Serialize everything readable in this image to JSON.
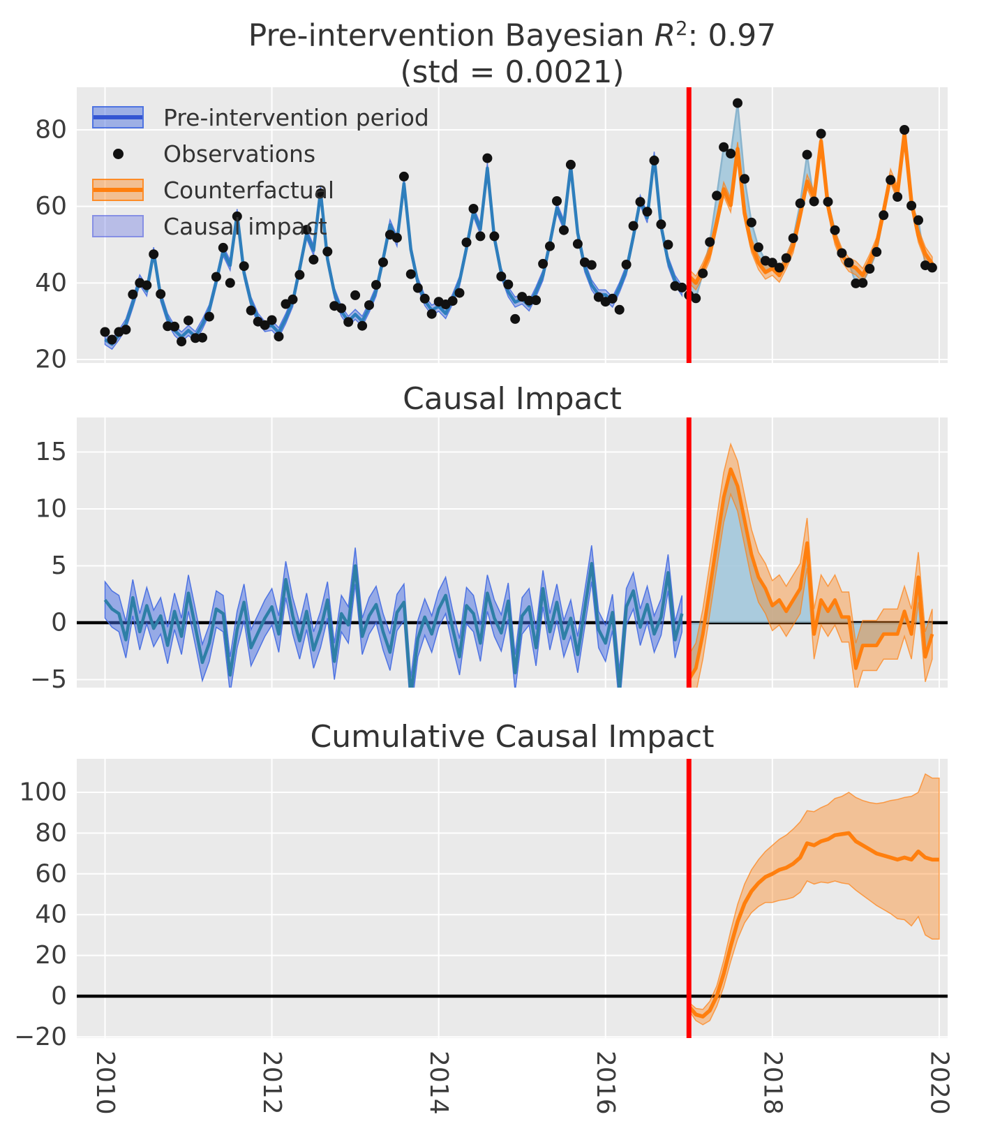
{
  "titles": {
    "top": {
      "prefix": "Pre-intervention Bayesian ",
      "r_symbol": "R",
      "exponent": "2",
      "suffix": ": 0.97",
      "subtitle": "(std = 0.0021)"
    },
    "middle": "Causal Impact",
    "bottom": "Cumulative Causal Impact"
  },
  "legend": {
    "items": [
      {
        "label": "Pre-intervention period",
        "swatch": "band-blue"
      },
      {
        "label": "Observations",
        "swatch": "dot"
      },
      {
        "label": "Counterfactual",
        "swatch": "band-orange"
      },
      {
        "label": "Causal impact",
        "swatch": "patch-lavender"
      }
    ]
  },
  "colors": {
    "panel_bg": "#eaeaea",
    "grid": "#ffffff",
    "text": "#3c3c3c",
    "blue_line": "#2e7ebc",
    "mid_blue_line": "#2e7fa6",
    "blue_band": "#4169e1",
    "legend_blue_line": "#3455d2",
    "orange_line": "#ff7f0e",
    "orange_band": "#ff7f0e",
    "impact_fill": "#9fc6da",
    "obs_thin_line": "#8ab4cd",
    "lavender_patch": "#5c69e1",
    "intervention_red": "#ff0000",
    "zero_black": "#000000",
    "dot_black": "#111111"
  },
  "chart_data": [
    {
      "type": "line",
      "panel": "observations-vs-counterfactual",
      "title": "Pre-intervention Bayesian R²: 0.97 (std = 0.0021)",
      "x_unit": "decimal years, monthly step 1/12",
      "x_start": 2010.0,
      "n_points": 120,
      "xticks": [
        2010,
        2012,
        2014,
        2016,
        2018,
        2020
      ],
      "yticks": [
        20,
        40,
        60,
        80
      ],
      "ylim": [
        19,
        91
      ],
      "intervention_x": 2017.0,
      "legend": [
        "Pre-intervention period",
        "Observations",
        "Counterfactual",
        "Causal impact"
      ],
      "series": [
        {
          "name": "model-fit-pre-intervention",
          "x_start": 2010.0,
          "band_halfwidth": 1.3,
          "values": [
            25.2,
            24.0,
            26.4,
            29.3,
            34.8,
            40.8,
            37.9,
            48.0,
            36.5,
            30.7,
            27.6,
            25.9,
            27.6,
            26.0,
            29.2,
            33.0,
            40.4,
            48.4,
            44.6,
            58.0,
            42.6,
            35.0,
            30.8,
            28.6,
            28.9,
            27.0,
            30.7,
            35.1,
            43.7,
            52.9,
            48.5,
            64.0,
            46.2,
            37.4,
            32.6,
            30.0,
            31.8,
            30.0,
            33.6,
            37.9,
            46.2,
            55.2,
            50.9,
            66.0,
            48.7,
            40.1,
            35.4,
            32.9,
            33.9,
            32.0,
            35.8,
            40.4,
            49.1,
            58.6,
            54.0,
            70.0,
            51.8,
            42.6,
            37.7,
            35.0,
            35.8,
            34.0,
            37.7,
            42.0,
            50.4,
            59.6,
            55.2,
            70.5,
            53.0,
            44.2,
            39.5,
            36.9,
            36.9,
            35.0,
            38.8,
            43.4,
            52.1,
            61.6,
            57.0,
            73.0,
            54.8,
            45.6,
            40.7,
            38.0
          ]
        },
        {
          "name": "observations",
          "x_start": 2010.0,
          "values": [
            27.2,
            25.2,
            27.2,
            27.8,
            37.0,
            40.0,
            39.4,
            47.5,
            37.1,
            28.7,
            28.6,
            24.7,
            30.2,
            25.6,
            25.7,
            31.2,
            41.6,
            49.2,
            40.0,
            57.4,
            44.4,
            32.8,
            29.9,
            29.0,
            30.3,
            26.0,
            34.5,
            35.7,
            42.1,
            53.9,
            46.1,
            63.4,
            48.2,
            34.0,
            33.4,
            29.8,
            36.8,
            28.8,
            34.2,
            39.5,
            45.4,
            52.6,
            51.8,
            67.8,
            42.3,
            38.7,
            35.9,
            31.9,
            35.1,
            34.4,
            35.3,
            37.4,
            50.6,
            59.4,
            52.2,
            72.6,
            52.2,
            41.7,
            39.6,
            30.6,
            36.4,
            35.4,
            35.5,
            45.0,
            49.6,
            61.4,
            53.8,
            70.9,
            50.2,
            45.4,
            44.7,
            36.3,
            35.1,
            35.9,
            33.0,
            44.8,
            54.9,
            61.2,
            58.6,
            72.0,
            55.3,
            50.0,
            39.2,
            38.8,
            36.8,
            36.0,
            42.5,
            50.7,
            62.8,
            75.5,
            73.8,
            87.0,
            67.2,
            55.8,
            49.3,
            45.8,
            45.3,
            44.0,
            46.5,
            51.7,
            60.8,
            73.5,
            61.3,
            79.0,
            61.2,
            53.8,
            47.8,
            45.3,
            39.9,
            40.0,
            43.7,
            48.1,
            57.7,
            66.9,
            62.5,
            80.0,
            60.2,
            56.4,
            44.6,
            44.0
          ]
        },
        {
          "name": "counterfactual",
          "x_start": 2017.0,
          "band_halfwidth": 1.8,
          "values": [
            41.8,
            40.0,
            43.5,
            47.7,
            55.8,
            64.5,
            60.3,
            75.0,
            58.2,
            49.8,
            45.3,
            42.8,
            43.8,
            42.0,
            45.5,
            49.7,
            57.8,
            66.5,
            62.3,
            77.0,
            60.2,
            51.8,
            47.3,
            44.8,
            43.9,
            42.0,
            45.7,
            50.1,
            58.7,
            67.9,
            63.5,
            79.0,
            61.2,
            52.4,
            47.6,
            45.0
          ]
        }
      ]
    },
    {
      "type": "line",
      "panel": "pointwise-causal-impact",
      "title": "Causal Impact",
      "xticks": [
        2010,
        2012,
        2014,
        2016,
        2018,
        2020
      ],
      "yticks": [
        -5,
        0,
        5,
        10,
        15
      ],
      "ylim": [
        -5.7,
        18
      ],
      "zero_line": true,
      "intervention_x": 2017.0,
      "series": [
        {
          "name": "impact-pre-intervention",
          "x_start": 2010.0,
          "band_halfwidth": 1.6,
          "values": [
            2.0,
            1.2,
            0.8,
            -1.5,
            2.2,
            -0.8,
            1.5,
            -0.5,
            0.6,
            -2.0,
            1.0,
            -1.2,
            2.6,
            -0.4,
            -3.5,
            -1.8,
            1.2,
            0.8,
            -4.6,
            -0.6,
            1.8,
            -2.2,
            -0.9,
            0.4,
            1.4,
            -1.0,
            3.8,
            0.6,
            -1.6,
            1.0,
            -2.4,
            -0.6,
            2.0,
            -3.4,
            0.8,
            -0.2,
            5.0,
            -1.2,
            0.6,
            1.6,
            -0.8,
            -2.6,
            0.9,
            1.8,
            -6.4,
            -1.4,
            0.5,
            -1.0,
            1.2,
            2.4,
            -0.5,
            -3.0,
            1.5,
            0.8,
            -1.8,
            2.6,
            0.4,
            -0.9,
            1.9,
            -4.4,
            0.6,
            1.4,
            -2.2,
            3.0,
            -0.8,
            1.8,
            -1.4,
            0.4,
            -2.8,
            1.2,
            5.2,
            -0.6,
            -1.8,
            0.9,
            -5.8,
            1.4,
            2.8,
            -0.4,
            1.6,
            -1.0,
            0.5,
            4.4,
            -1.5,
            0.8
          ]
        },
        {
          "name": "impact-post-intervention",
          "x_start": 2017.0,
          "band_halfwidth": 2.2,
          "values": [
            -5.0,
            -4.0,
            -1.0,
            3.0,
            7.0,
            11.0,
            13.5,
            12.0,
            9.0,
            6.0,
            4.0,
            3.0,
            1.5,
            2.0,
            1.0,
            2.0,
            3.0,
            7.0,
            -1.0,
            2.0,
            1.0,
            2.0,
            0.5,
            0.5,
            -4.0,
            -2.0,
            -2.0,
            -2.0,
            -1.0,
            -1.0,
            -1.0,
            1.0,
            -1.0,
            4.0,
            -3.0,
            -1.0
          ]
        }
      ]
    },
    {
      "type": "line",
      "panel": "cumulative-causal-impact",
      "title": "Cumulative Causal Impact",
      "xticks": [
        2010,
        2012,
        2014,
        2016,
        2018,
        2020
      ],
      "yticks": [
        -20,
        0,
        20,
        40,
        60,
        80,
        100
      ],
      "ylim": [
        -20.5,
        116
      ],
      "zero_line": true,
      "intervention_x": 2017.0,
      "series": [
        {
          "name": "cumulative-impact",
          "x_start": 2017.0,
          "values": [
            -5.0,
            -9.0,
            -10.0,
            -7.0,
            0.0,
            11.0,
            24.5,
            36.5,
            45.5,
            51.5,
            55.5,
            58.5,
            60.0,
            62.0,
            63.0,
            65.0,
            68.0,
            75.0,
            74.0,
            76.0,
            77.0,
            79.0,
            79.5,
            80.0,
            76.0,
            74.0,
            72.0,
            70.0,
            69.0,
            68.0,
            67.0,
            68.0,
            67.0,
            71.0,
            68.0,
            67.0
          ],
          "upper": [
            -3.0,
            -6.0,
            -6.5,
            -2.5,
            5.0,
            17.5,
            32.0,
            45.0,
            55.0,
            62.0,
            67.0,
            71.0,
            74.0,
            77.0,
            79.0,
            82.0,
            85.5,
            91.0,
            90.5,
            92.5,
            94.0,
            97.0,
            98.0,
            100.0,
            97.5,
            96.0,
            95.0,
            94.5,
            95.0,
            96.0,
            96.5,
            97.5,
            98.0,
            100.0,
            109.0,
            107.0
          ],
          "lower": [
            -7.0,
            -12.0,
            -14.0,
            -12.0,
            -5.0,
            4.5,
            17.0,
            28.0,
            36.0,
            41.0,
            44.0,
            46.0,
            46.0,
            47.0,
            47.5,
            48.5,
            51.0,
            56.5,
            55.0,
            56.0,
            55.5,
            56.5,
            55.5,
            55.0,
            52.0,
            49.5,
            47.0,
            44.5,
            42.5,
            40.5,
            38.0,
            37.5,
            34.5,
            39.0,
            30.0,
            28.0
          ]
        }
      ]
    }
  ]
}
